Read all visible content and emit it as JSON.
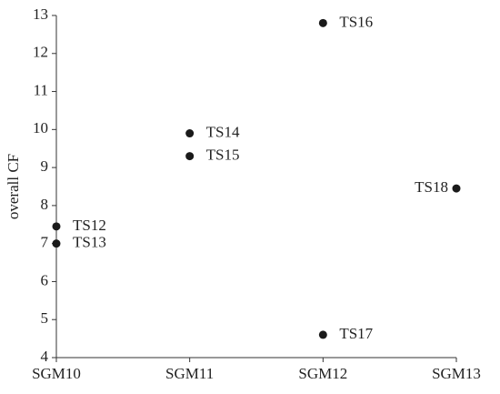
{
  "chart_data": {
    "type": "scatter",
    "categories": [
      "SGM10",
      "SGM11",
      "SGM12",
      "SGM13"
    ],
    "x": [
      "SGM10",
      "SGM10",
      "SGM11",
      "SGM11",
      "SGM12",
      "SGM12",
      "SGM13"
    ],
    "values": [
      7.45,
      7.0,
      9.9,
      9.3,
      12.8,
      4.6,
      8.45
    ],
    "point_labels": [
      "TS12",
      "TS13",
      "TS14",
      "TS15",
      "TS16",
      "TS17",
      "TS18"
    ],
    "color": "#1a1a1a",
    "y_label": "overall CF",
    "ylim": [
      4,
      13
    ],
    "yticks": [
      4,
      5,
      6,
      7,
      8,
      9,
      10,
      11,
      12,
      13
    ]
  }
}
